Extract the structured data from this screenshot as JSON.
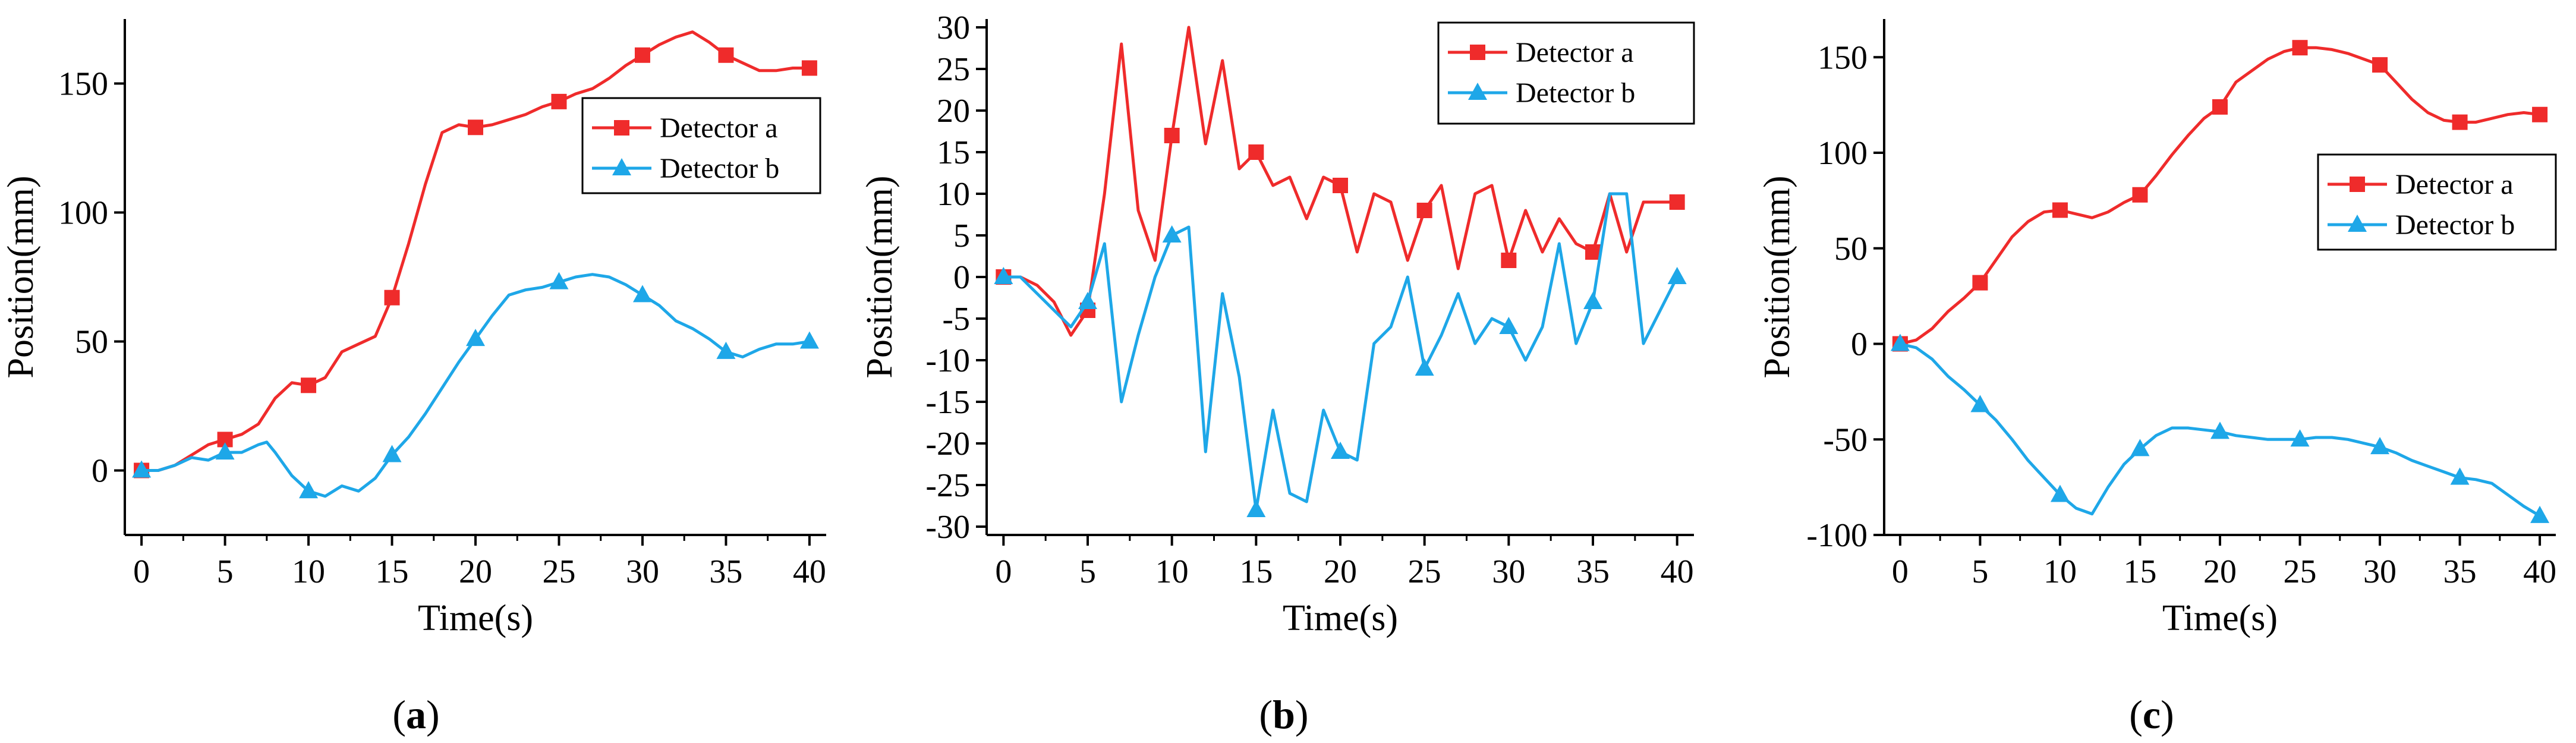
{
  "chart_data": [
    {
      "type": "line",
      "panel_label": "a",
      "caption": {
        "open": "(",
        "letter": "a",
        "close": ")"
      },
      "xlabel": "Time(s)",
      "ylabel": "Position(mm)",
      "xlim": [
        -1,
        41
      ],
      "ylim": [
        -25,
        175
      ],
      "xticks": [
        0,
        5,
        10,
        15,
        20,
        25,
        30,
        35,
        40
      ],
      "yticks": [
        0,
        50,
        100,
        150
      ],
      "legend_position": "upper-right",
      "colors": {
        "Detector a": "#ef2b2b",
        "Detector b": "#1ea7e8"
      },
      "series": [
        {
          "name": "Detector a",
          "marker": "square",
          "x": [
            0,
            1,
            2,
            3,
            4,
            5,
            6,
            7,
            8,
            9,
            10,
            11,
            12,
            13,
            14,
            15,
            16,
            17,
            18,
            19,
            20,
            21,
            22,
            23,
            24,
            25,
            26,
            27,
            28,
            29,
            30,
            31,
            32,
            33,
            34,
            35,
            36,
            37,
            38,
            39,
            40
          ],
          "y": [
            0,
            0,
            2,
            6,
            10,
            12,
            14,
            18,
            28,
            34,
            33,
            36,
            46,
            49,
            52,
            67,
            88,
            111,
            131,
            134,
            133,
            134,
            136,
            138,
            141,
            143,
            146,
            148,
            152,
            157,
            161,
            165,
            168,
            170,
            166,
            161,
            158,
            155,
            155,
            156,
            156
          ],
          "markers_x": [
            0,
            5,
            10,
            15,
            20,
            25,
            30,
            35,
            40
          ]
        },
        {
          "name": "Detector b",
          "marker": "triangle",
          "x": [
            0,
            1,
            2,
            3,
            4,
            5,
            6,
            7,
            7.5,
            8,
            9,
            10,
            11,
            12,
            13,
            14,
            15,
            16,
            17,
            18,
            19,
            20,
            21,
            22,
            23,
            24,
            25,
            26,
            27,
            28,
            29,
            30,
            31,
            32,
            33,
            34,
            35,
            36,
            37,
            38,
            39,
            40
          ],
          "y": [
            0,
            0,
            2,
            5,
            4,
            7,
            7,
            10,
            11,
            7,
            -2,
            -8,
            -10,
            -6,
            -8,
            -3,
            6,
            13,
            22,
            32,
            42,
            51,
            60,
            68,
            70,
            71,
            73,
            75,
            76,
            75,
            72,
            68,
            64,
            58,
            55,
            51,
            46,
            44,
            47,
            49,
            49,
            50
          ],
          "markers_x": [
            0,
            5,
            10,
            15,
            20,
            25,
            30,
            35,
            40
          ]
        }
      ]
    },
    {
      "type": "line",
      "panel_label": "b",
      "caption": {
        "open": "(",
        "letter": "b",
        "close": ")"
      },
      "xlabel": "Time(s)",
      "ylabel": "Position(mm)",
      "xlim": [
        -1,
        41
      ],
      "ylim": [
        -31,
        31
      ],
      "xticks": [
        0,
        5,
        10,
        15,
        20,
        25,
        30,
        35,
        40
      ],
      "yticks": [
        -30,
        -25,
        -20,
        -15,
        -10,
        -5,
        0,
        5,
        10,
        15,
        20,
        25,
        30
      ],
      "legend_position": "upper-right",
      "colors": {
        "Detector a": "#ef2b2b",
        "Detector b": "#1ea7e8"
      },
      "series": [
        {
          "name": "Detector a",
          "marker": "square",
          "x": [
            0,
            1,
            2,
            3,
            4,
            5,
            6,
            7,
            8,
            9,
            10,
            11,
            12,
            13,
            14,
            15,
            16,
            17,
            18,
            19,
            20,
            21,
            22,
            23,
            24,
            25,
            26,
            27,
            28,
            29,
            30,
            31,
            32,
            33,
            34,
            35,
            36,
            37,
            38,
            39,
            40
          ],
          "y": [
            0,
            0,
            -1,
            -3,
            -7,
            -4,
            10,
            28,
            8,
            2,
            17,
            30,
            16,
            26,
            13,
            15,
            11,
            12,
            7,
            12,
            11,
            3,
            10,
            9,
            2,
            8,
            11,
            1,
            10,
            11,
            2,
            8,
            3,
            7,
            4,
            3,
            10,
            3,
            9,
            9,
            9
          ],
          "markers_x": [
            0,
            5,
            10,
            15,
            20,
            25,
            30,
            35,
            40
          ]
        },
        {
          "name": "Detector b",
          "marker": "triangle",
          "x": [
            0,
            1,
            2,
            3,
            4,
            5,
            6,
            7,
            8,
            9,
            10,
            11,
            12,
            13,
            14,
            15,
            16,
            17,
            18,
            19,
            20,
            21,
            22,
            23,
            24,
            25,
            26,
            27,
            28,
            29,
            30,
            31,
            32,
            33,
            34,
            35,
            36,
            37,
            38,
            39,
            40
          ],
          "y": [
            0,
            0,
            -2,
            -4,
            -6,
            -3,
            4,
            -15,
            -7,
            0,
            5,
            6,
            -21,
            -2,
            -12,
            -28,
            -16,
            -26,
            -27,
            -16,
            -21,
            -22,
            -8,
            -6,
            0,
            -11,
            -7,
            -2,
            -8,
            -5,
            -6,
            -10,
            -6,
            4,
            -8,
            -3,
            10,
            10,
            -8,
            -4,
            0
          ],
          "markers_x": [
            0,
            5,
            10,
            15,
            20,
            25,
            30,
            35,
            40
          ]
        }
      ]
    },
    {
      "type": "line",
      "panel_label": "c",
      "caption": {
        "open": "(",
        "letter": "c",
        "close": ")"
      },
      "xlabel": "Time(s)",
      "ylabel": "Position(mm)",
      "xlim": [
        -1,
        41
      ],
      "ylim": [
        -100,
        170
      ],
      "xticks": [
        0,
        5,
        10,
        15,
        20,
        25,
        30,
        35,
        40
      ],
      "yticks": [
        -100,
        -50,
        0,
        50,
        100,
        150
      ],
      "legend_position": "center-right",
      "colors": {
        "Detector a": "#ef2b2b",
        "Detector b": "#1ea7e8"
      },
      "series": [
        {
          "name": "Detector a",
          "marker": "square",
          "x": [
            0,
            1,
            2,
            3,
            4,
            5,
            6,
            7,
            8,
            9,
            10,
            11,
            12,
            13,
            14,
            15,
            16,
            17,
            18,
            19,
            20,
            21,
            22,
            23,
            24,
            25,
            26,
            27,
            28,
            29,
            30,
            31,
            32,
            33,
            34,
            35,
            36,
            37,
            38,
            39,
            40
          ],
          "y": [
            0,
            2,
            8,
            17,
            24,
            32,
            44,
            56,
            64,
            69,
            70,
            68,
            66,
            69,
            74,
            78,
            88,
            99,
            109,
            118,
            124,
            137,
            143,
            149,
            153,
            155,
            155,
            154,
            152,
            149,
            146,
            137,
            128,
            121,
            117,
            116,
            116,
            118,
            120,
            121,
            120
          ],
          "markers_x": [
            0,
            5,
            10,
            15,
            20,
            25,
            30,
            35,
            40
          ]
        },
        {
          "name": "Detector b",
          "marker": "triangle",
          "x": [
            0,
            1,
            2,
            3,
            4,
            5,
            6,
            7,
            8,
            9,
            10,
            11,
            12,
            13,
            14,
            15,
            16,
            17,
            18,
            19,
            20,
            21,
            22,
            23,
            24,
            25,
            26,
            27,
            28,
            29,
            30,
            31,
            32,
            33,
            34,
            35,
            36,
            37,
            38,
            39,
            40
          ],
          "y": [
            0,
            -2,
            -8,
            -17,
            -24,
            -32,
            -40,
            -50,
            -61,
            -70,
            -79,
            -86,
            -89,
            -75,
            -63,
            -55,
            -48,
            -44,
            -44,
            -45,
            -46,
            -48,
            -49,
            -50,
            -50,
            -50,
            -49,
            -49,
            -50,
            -52,
            -54,
            -57,
            -61,
            -64,
            -67,
            -70,
            -71,
            -73,
            -79,
            -85,
            -90
          ],
          "markers_x": [
            0,
            5,
            10,
            15,
            20,
            25,
            30,
            35,
            40
          ]
        }
      ]
    }
  ]
}
